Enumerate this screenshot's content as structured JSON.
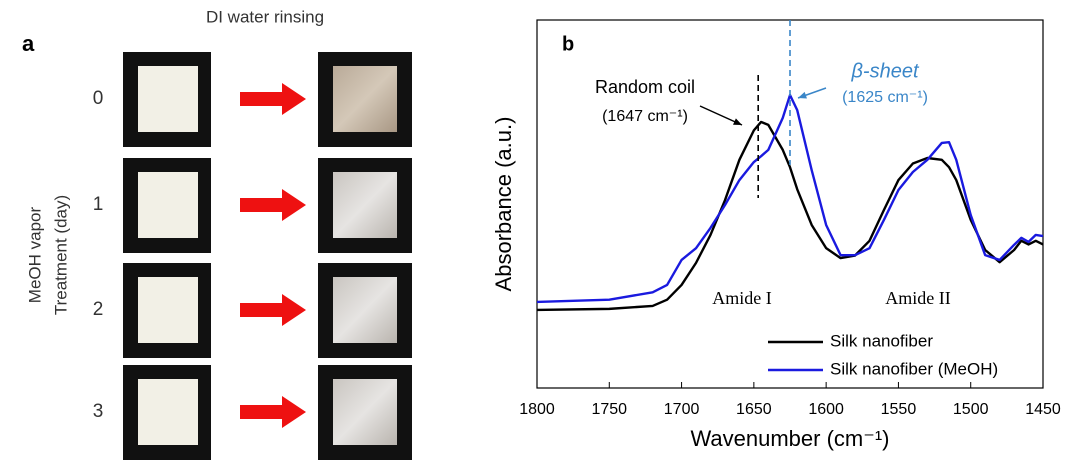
{
  "panel_a": {
    "label": "a",
    "title": "DI water rinsing",
    "axis_label": [
      "MeOH vapor",
      "Treatment (day)"
    ],
    "rows": [
      "0",
      "1",
      "2",
      "3"
    ]
  },
  "chart_data": {
    "type": "line",
    "panel_label": "b",
    "xlabel": "Wavenumber (cm⁻¹)",
    "ylabel": "Absorbance (a.u.)",
    "xlim": [
      1800,
      1450
    ],
    "xticks": [
      1800,
      1750,
      1700,
      1650,
      1600,
      1550,
      1500,
      1450
    ],
    "ylim": [
      0,
      1
    ],
    "x": [
      1800,
      1750,
      1720,
      1710,
      1700,
      1690,
      1680,
      1670,
      1660,
      1650,
      1645,
      1640,
      1630,
      1625,
      1620,
      1610,
      1600,
      1590,
      1580,
      1570,
      1560,
      1550,
      1540,
      1530,
      1520,
      1515,
      1510,
      1500,
      1490,
      1480,
      1470,
      1465,
      1460,
      1455,
      1450
    ],
    "series": [
      {
        "name": "Silk nanofiber",
        "color": "#000000",
        "values": [
          0.212,
          0.215,
          0.223,
          0.24,
          0.28,
          0.34,
          0.416,
          0.51,
          0.62,
          0.7,
          0.723,
          0.715,
          0.647,
          0.6,
          0.54,
          0.443,
          0.38,
          0.353,
          0.36,
          0.4,
          0.484,
          0.565,
          0.61,
          0.625,
          0.62,
          0.6,
          0.565,
          0.457,
          0.375,
          0.342,
          0.375,
          0.4,
          0.39,
          0.4,
          0.39
        ]
      },
      {
        "name": "Silk nanofiber (MeOH)",
        "color": "#1a1adf",
        "values": [
          0.234,
          0.24,
          0.26,
          0.28,
          0.348,
          0.38,
          0.435,
          0.497,
          0.565,
          0.614,
          0.63,
          0.647,
          0.734,
          0.796,
          0.755,
          0.592,
          0.443,
          0.361,
          0.361,
          0.38,
          0.457,
          0.538,
          0.587,
          0.62,
          0.666,
          0.668,
          0.62,
          0.47,
          0.361,
          0.348,
          0.389,
          0.408,
          0.397,
          0.416,
          0.413
        ]
      }
    ],
    "peaks": [
      {
        "label": "Random coil",
        "position_label": "(1647 cm⁻¹)",
        "x": 1647,
        "color": "#000000"
      },
      {
        "label": "β-sheet",
        "position_label": "(1625 cm⁻¹)",
        "x": 1625,
        "color": "#3a86c8"
      }
    ],
    "bands": [
      "Amide I",
      "Amide II"
    ],
    "legend": "lower right"
  }
}
